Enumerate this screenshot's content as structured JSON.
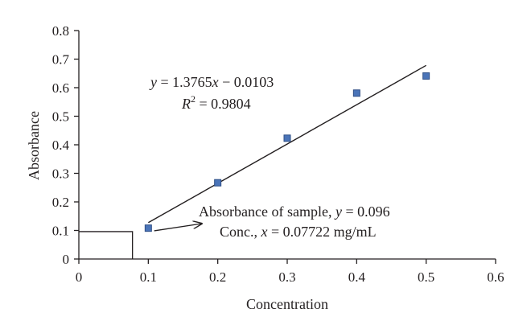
{
  "chart_data": {
    "type": "scatter",
    "xlabel": "Concentration",
    "ylabel": "Absorbance",
    "xlim": [
      0,
      0.6
    ],
    "ylim": [
      0,
      0.8
    ],
    "x_ticks": [
      "0",
      "0.1",
      "0.2",
      "0.3",
      "0.4",
      "0.5",
      "0.6"
    ],
    "y_ticks": [
      "0",
      "0.1",
      "0.2",
      "0.3",
      "0.4",
      "0.5",
      "0.6",
      "0.7",
      "0.8"
    ],
    "x": [
      0.1,
      0.2,
      0.3,
      0.4,
      0.5
    ],
    "y": [
      0.108,
      0.267,
      0.423,
      0.581,
      0.641
    ],
    "marker_color": "#4a74b8",
    "trendline": {
      "slope": 1.3765,
      "intercept": -0.0103,
      "x_range": [
        0.1,
        0.5
      ],
      "equation_text": {
        "y_var": "y",
        "eq_part1": " = 1.3765",
        "x_var": "x",
        "eq_part2": " − 0.0103"
      },
      "r2_text": {
        "r_var": "R",
        "sup": "2",
        "value": " = 0.9804"
      }
    },
    "sample": {
      "x": 0.07722,
      "y": 0.096,
      "absorbance_text": {
        "prefix": "Absorbance of sample, ",
        "var": "y",
        "value": " = 0.096"
      },
      "conc_text": {
        "prefix": "Conc., ",
        "var": "x",
        "value": " = 0.07722 mg/mL"
      }
    }
  }
}
